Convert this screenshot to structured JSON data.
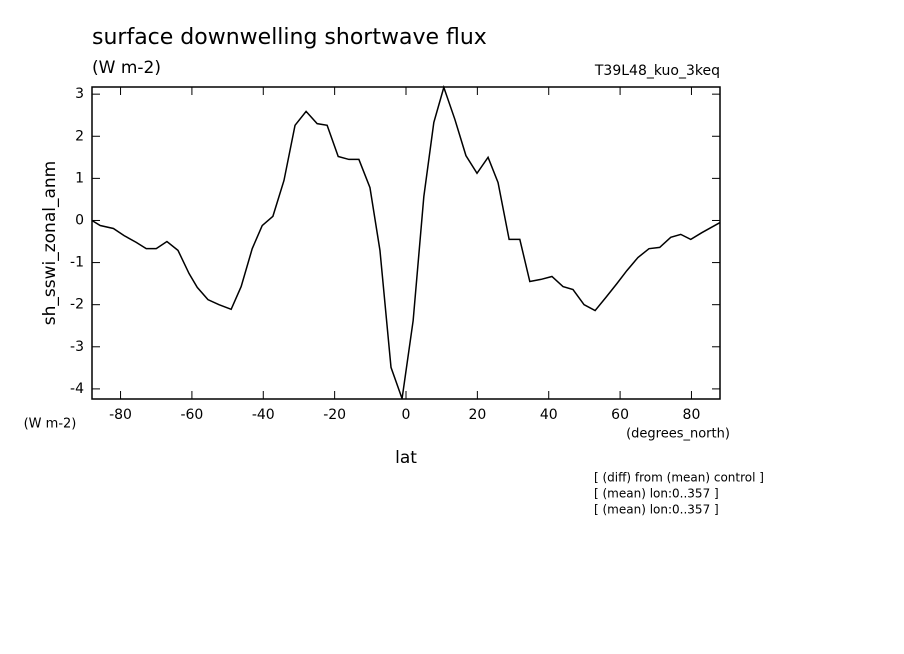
{
  "chart_data": {
    "type": "line",
    "title": "surface downwelling shortwave flux",
    "subtitle": "(W m-2)",
    "run_label": "T39L48_kuo_3keq",
    "y_label": "sh_sswi_zonal_anm",
    "y_units": "(W m-2)",
    "x_units": "(degrees_north)",
    "x_label": "lat",
    "notes": [
      "[ (diff) from (mean) control ]",
      "[ (mean) lon:0..357 ]",
      "[ (mean) lon:0..357 ]"
    ],
    "color": "#000000",
    "xlim": [
      -88,
      88
    ],
    "ylim": [
      -4.24,
      3.17
    ],
    "xticks": [
      -80,
      -60,
      -40,
      -20,
      0,
      20,
      40,
      60,
      80
    ],
    "yticks": [
      -4,
      -3,
      -2,
      -1,
      0,
      1,
      2,
      3
    ],
    "x": [
      -88,
      -85.7,
      -82,
      -79,
      -75.6,
      -72.8,
      -70,
      -67,
      -63.9,
      -60.8,
      -58.5,
      -55.5,
      -52.4,
      -49,
      -46.2,
      -43.1,
      -40.3,
      -37.3,
      -34.2,
      -31.1,
      -28,
      -24.9,
      -22.1,
      -19,
      -16,
      -13.2,
      -10.1,
      -7.3,
      -4.2,
      -1.1,
      2,
      5,
      7.8,
      10.6,
      13.7,
      16.8,
      19.9,
      23,
      25.8,
      28.9,
      31.9,
      34.7,
      37.8,
      40.9,
      44,
      46.8,
      49.9,
      53,
      56,
      59.1,
      61.9,
      65,
      68.1,
      71.1,
      74.2,
      77,
      79.8,
      82.9,
      88
    ],
    "values": [
      0.0,
      -0.12,
      -0.19,
      -0.36,
      -0.52,
      -0.67,
      -0.67,
      -0.5,
      -0.71,
      -1.26,
      -1.59,
      -1.88,
      -2.0,
      -2.11,
      -1.57,
      -0.67,
      -0.12,
      0.1,
      0.95,
      2.26,
      2.59,
      2.3,
      2.26,
      1.52,
      1.45,
      1.45,
      0.78,
      -0.71,
      -3.49,
      -4.23,
      -2.38,
      0.57,
      2.33,
      3.16,
      2.4,
      1.54,
      1.12,
      1.5,
      0.9,
      -0.45,
      -0.45,
      -1.45,
      -1.4,
      -1.33,
      -1.57,
      -1.64,
      -2.0,
      -2.14,
      -1.83,
      -1.5,
      -1.19,
      -0.88,
      -0.67,
      -0.64,
      -0.4,
      -0.33,
      -0.45,
      -0.29,
      -0.05
    ]
  }
}
